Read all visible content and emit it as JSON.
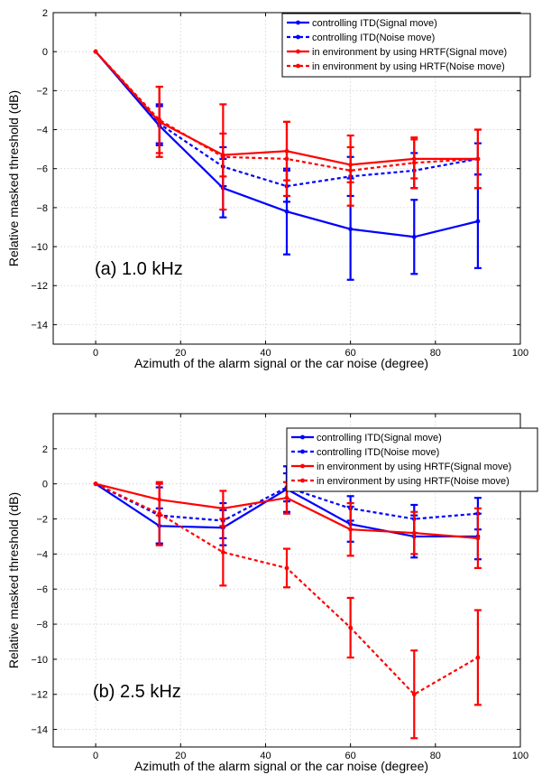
{
  "chart_data": [
    {
      "type": "line",
      "panel_label": "(a) 1.0 kHz",
      "xlabel": "Azimuth of the alarm signal or the car noise (degree)",
      "ylabel": "Relative masked threshold (dB)",
      "xlim": [
        -10,
        100
      ],
      "ylim": [
        -15,
        2
      ],
      "xticks": [
        0,
        20,
        40,
        60,
        80,
        100
      ],
      "yticks": [
        2,
        0,
        -2,
        -4,
        -6,
        -8,
        -10,
        -12,
        -14
      ],
      "grid": true,
      "legend_position": "top-right",
      "x": [
        0,
        15,
        30,
        45,
        60,
        75,
        90
      ],
      "series": [
        {
          "name": "controlling ITD(Signal move)",
          "color": "#0000ff",
          "dash": "solid",
          "values": [
            0,
            -3.8,
            -7.0,
            -8.2,
            -9.1,
            -9.5,
            -8.7
          ],
          "errors": [
            0,
            1.0,
            1.5,
            2.2,
            2.6,
            1.9,
            2.4
          ]
        },
        {
          "name": "controlling ITD(Noise move)",
          "color": "#0000ff",
          "dash": "dotted",
          "values": [
            0,
            -3.7,
            -5.9,
            -6.9,
            -6.4,
            -6.1,
            -5.5
          ],
          "errors": [
            0,
            1.0,
            1.0,
            0.8,
            1.0,
            0.9,
            0.8
          ]
        },
        {
          "name": "in environment by using HRTF(Signal move)",
          "color": "#ff0000",
          "dash": "solid",
          "values": [
            0,
            -3.6,
            -5.3,
            -5.1,
            -5.8,
            -5.5,
            -5.5
          ],
          "errors": [
            0,
            1.8,
            1.1,
            1.5,
            0.9,
            1.0,
            1.5
          ]
        },
        {
          "name": "in environment by using HRTF(Noise move)",
          "color": "#ff0000",
          "dash": "dotted",
          "values": [
            0,
            -3.5,
            -5.4,
            -5.5,
            -6.1,
            -5.7,
            -5.5
          ],
          "errors": [
            0,
            1.7,
            2.7,
            1.9,
            1.8,
            1.3,
            1.5
          ]
        }
      ]
    },
    {
      "type": "line",
      "panel_label": "(b) 2.5 kHz",
      "xlabel": "Azimuth of the alarm signal or the car noise (degree)",
      "ylabel": "Relative masked threshold (dB)",
      "xlim": [
        -10,
        100
      ],
      "ylim": [
        -15,
        4
      ],
      "xticks": [
        0,
        20,
        40,
        60,
        80,
        100
      ],
      "yticks": [
        2,
        0,
        -2,
        -4,
        -6,
        -8,
        -10,
        -12,
        -14
      ],
      "grid": true,
      "legend_position": "top-right",
      "x": [
        0,
        15,
        30,
        45,
        60,
        75,
        90
      ],
      "series": [
        {
          "name": "controlling ITD(Signal move)",
          "color": "#0000ff",
          "dash": "solid",
          "values": [
            0,
            -2.4,
            -2.5,
            -0.3,
            -2.3,
            -3.0,
            -3.0
          ],
          "errors": [
            0,
            1.0,
            1.0,
            1.3,
            1.0,
            1.2,
            1.3
          ]
        },
        {
          "name": "controlling ITD(Noise move)",
          "color": "#0000ff",
          "dash": "dotted",
          "values": [
            0,
            -1.8,
            -2.1,
            -0.2,
            -1.4,
            -2.0,
            -1.7
          ],
          "errors": [
            0,
            1.6,
            1.0,
            0.8,
            0.7,
            0.8,
            0.9
          ]
        },
        {
          "name": "in environment by using HRTF(Signal move)",
          "color": "#ff0000",
          "dash": "solid",
          "values": [
            0,
            -0.9,
            -1.4,
            -0.8,
            -2.6,
            -2.8,
            -3.1
          ],
          "errors": [
            0,
            0.9,
            1.0,
            0.9,
            1.5,
            1.2,
            1.7
          ]
        },
        {
          "name": "in environment by using HRTF(Noise move)",
          "color": "#ff0000",
          "dash": "dotted",
          "values": [
            0,
            -1.7,
            -3.9,
            -4.8,
            -8.2,
            -12.0,
            -9.9
          ],
          "errors": [
            0,
            1.8,
            1.9,
            1.1,
            1.7,
            2.5,
            2.7
          ]
        }
      ]
    }
  ]
}
